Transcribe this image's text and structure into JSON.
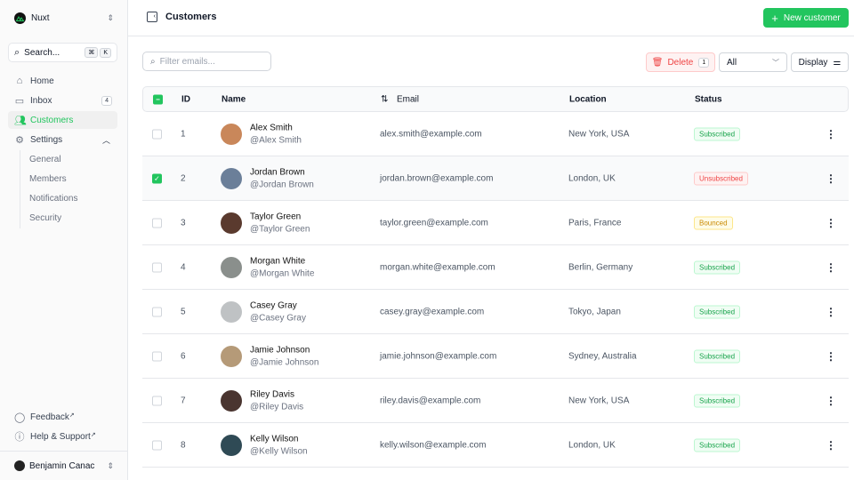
{
  "sidebar": {
    "team": "Nuxt",
    "search_label": "Search...",
    "search_kbd": [
      "⌘",
      "K"
    ],
    "nav": [
      {
        "label": "Home",
        "icon": "home-icon"
      },
      {
        "label": "Inbox",
        "icon": "inbox-icon",
        "badge": "4"
      },
      {
        "label": "Customers",
        "icon": "users-icon",
        "active": true
      },
      {
        "label": "Settings",
        "icon": "gear-icon"
      }
    ],
    "settings_sub": [
      "General",
      "Members",
      "Notifications",
      "Security"
    ],
    "footer": [
      {
        "label": "Feedback",
        "icon": "chat-icon"
      },
      {
        "label": "Help & Support",
        "icon": "info-icon"
      }
    ],
    "user": "Benjamin Canac"
  },
  "header": {
    "title": "Customers",
    "new_button": "New customer"
  },
  "toolbar": {
    "filter_placeholder": "Filter emails...",
    "delete_label": "Delete",
    "delete_count": "1",
    "status_select": "All",
    "display_label": "Display"
  },
  "table": {
    "columns": [
      "ID",
      "Name",
      "Email",
      "Location",
      "Status"
    ],
    "rows": [
      {
        "id": "1",
        "name": "Alex Smith",
        "handle": "@Alex Smith",
        "email": "alex.smith@example.com",
        "location": "New York, USA",
        "status": "Subscribed",
        "selected": false,
        "avatar": "#c9875a"
      },
      {
        "id": "2",
        "name": "Jordan Brown",
        "handle": "@Jordan Brown",
        "email": "jordan.brown@example.com",
        "location": "London, UK",
        "status": "Unsubscribed",
        "selected": true,
        "avatar": "#6b7f99"
      },
      {
        "id": "3",
        "name": "Taylor Green",
        "handle": "@Taylor Green",
        "email": "taylor.green@example.com",
        "location": "Paris, France",
        "status": "Bounced",
        "selected": false,
        "avatar": "#5a3a2e"
      },
      {
        "id": "4",
        "name": "Morgan White",
        "handle": "@Morgan White",
        "email": "morgan.white@example.com",
        "location": "Berlin, Germany",
        "status": "Subscribed",
        "selected": false,
        "avatar": "#8a8f8c"
      },
      {
        "id": "5",
        "name": "Casey Gray",
        "handle": "@Casey Gray",
        "email": "casey.gray@example.com",
        "location": "Tokyo, Japan",
        "status": "Subscribed",
        "selected": false,
        "avatar": "#bfc2c4"
      },
      {
        "id": "6",
        "name": "Jamie Johnson",
        "handle": "@Jamie Johnson",
        "email": "jamie.johnson@example.com",
        "location": "Sydney, Australia",
        "status": "Subscribed",
        "selected": false,
        "avatar": "#b59a78"
      },
      {
        "id": "7",
        "name": "Riley Davis",
        "handle": "@Riley Davis",
        "email": "riley.davis@example.com",
        "location": "New York, USA",
        "status": "Subscribed",
        "selected": false,
        "avatar": "#4a3530"
      },
      {
        "id": "8",
        "name": "Kelly Wilson",
        "handle": "@Kelly Wilson",
        "email": "kelly.wilson@example.com",
        "location": "London, UK",
        "status": "Subscribed",
        "selected": false,
        "avatar": "#2f4a55"
      }
    ]
  },
  "colors": {
    "accent": "#22c55e",
    "danger": "#ef4444",
    "warning": "#eab308"
  }
}
